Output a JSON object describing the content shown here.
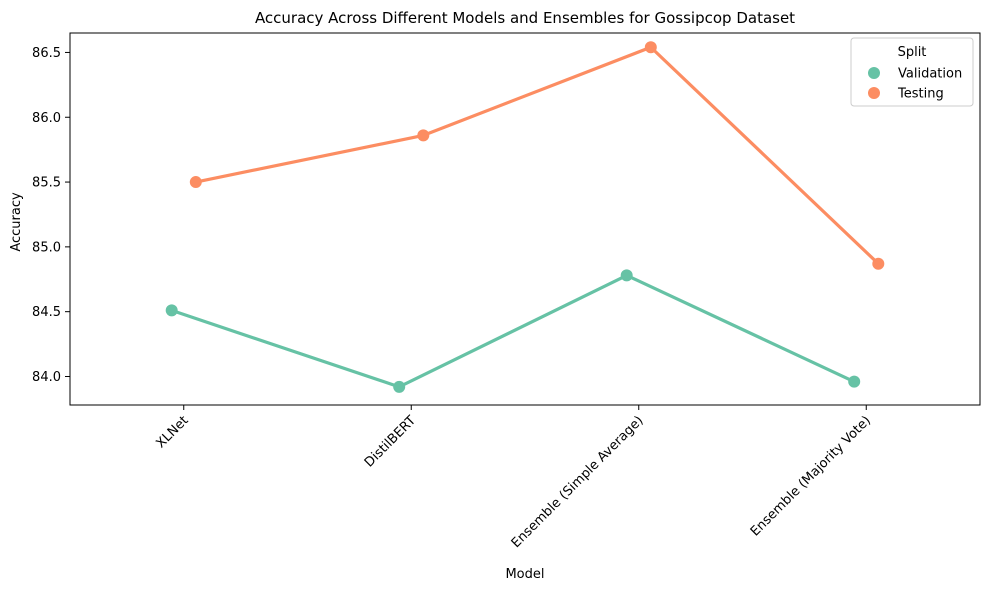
{
  "chart_data": {
    "type": "line",
    "title": "Accuracy Across Different Models and Ensembles for Gossipcop Dataset",
    "xlabel": "Model",
    "ylabel": "Accuracy",
    "categories": [
      "XLNet",
      "DistilBERT",
      "Ensemble (Simple Average)",
      "Ensemble (Majority Vote)"
    ],
    "series": [
      {
        "name": "Validation",
        "color": "#66c2a5",
        "values": [
          84.51,
          83.92,
          84.78,
          83.96
        ]
      },
      {
        "name": "Testing",
        "color": "#fc8d62",
        "values": [
          85.5,
          85.86,
          86.54,
          84.87
        ]
      }
    ],
    "ylim": [
      83.78,
      86.65
    ],
    "yticks": [
      "84.0",
      "84.5",
      "85.0",
      "85.5",
      "86.0",
      "86.5"
    ],
    "legend": {
      "title": "Split",
      "position": "top-right"
    },
    "grid": false
  }
}
